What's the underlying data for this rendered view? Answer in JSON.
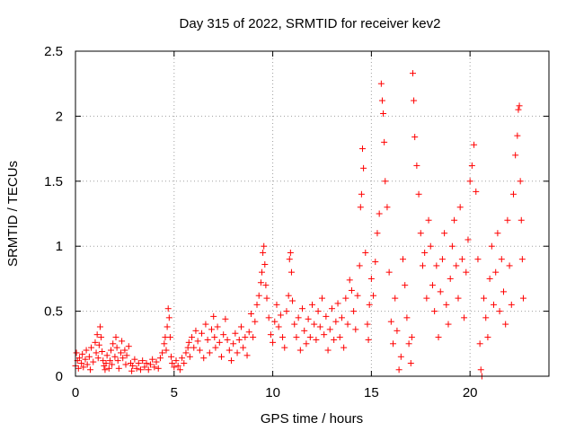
{
  "chart_data": {
    "type": "scatter",
    "title": "Day 315 of 2022, SRMTID for receiver kev2",
    "xlabel": "GPS time / hours",
    "ylabel": "SRMTID / TECUs",
    "xlim": [
      0,
      24
    ],
    "ylim": [
      0,
      2.5
    ],
    "x_ticks": [
      0,
      5,
      10,
      15,
      20
    ],
    "x_tick_labels": [
      "0",
      "5",
      "10",
      "15",
      "20"
    ],
    "y_ticks": [
      0,
      0.5,
      1,
      1.5,
      2,
      2.5
    ],
    "y_tick_labels": [
      "0",
      "0.5",
      "1",
      "1.5",
      "2",
      "2.5"
    ],
    "grid": true,
    "marker": "plus",
    "series_color": "#ff0000",
    "series": [
      {
        "name": "SRMTID",
        "points": [
          [
            0.0,
            0.08
          ],
          [
            0.05,
            0.18
          ],
          [
            0.1,
            0.12
          ],
          [
            0.15,
            0.06
          ],
          [
            0.2,
            0.14
          ],
          [
            0.3,
            0.1
          ],
          [
            0.35,
            0.17
          ],
          [
            0.4,
            0.07
          ],
          [
            0.5,
            0.13
          ],
          [
            0.55,
            0.2
          ],
          [
            0.6,
            0.09
          ],
          [
            0.7,
            0.15
          ],
          [
            0.75,
            0.05
          ],
          [
            0.8,
            0.22
          ],
          [
            0.9,
            0.11
          ],
          [
            1.0,
            0.26
          ],
          [
            1.05,
            0.18
          ],
          [
            1.1,
            0.32
          ],
          [
            1.15,
            0.14
          ],
          [
            1.2,
            0.24
          ],
          [
            1.25,
            0.38
          ],
          [
            1.3,
            0.3
          ],
          [
            1.35,
            0.19
          ],
          [
            1.4,
            0.12
          ],
          [
            1.45,
            0.08
          ],
          [
            1.5,
            0.05
          ],
          [
            1.55,
            0.1
          ],
          [
            1.6,
            0.16
          ],
          [
            1.7,
            0.06
          ],
          [
            1.75,
            0.12
          ],
          [
            1.8,
            0.2
          ],
          [
            1.85,
            0.09
          ],
          [
            1.9,
            0.25
          ],
          [
            2.0,
            0.15
          ],
          [
            2.05,
            0.3
          ],
          [
            2.1,
            0.22
          ],
          [
            2.15,
            0.12
          ],
          [
            2.2,
            0.06
          ],
          [
            2.3,
            0.18
          ],
          [
            2.35,
            0.27
          ],
          [
            2.4,
            0.14
          ],
          [
            2.5,
            0.2
          ],
          [
            2.55,
            0.09
          ],
          [
            2.6,
            0.16
          ],
          [
            2.7,
            0.23
          ],
          [
            2.8,
            0.1
          ],
          [
            2.85,
            0.04
          ],
          [
            2.9,
            0.08
          ],
          [
            3.0,
            0.13
          ],
          [
            3.1,
            0.06
          ],
          [
            3.2,
            0.1
          ],
          [
            3.3,
            0.05
          ],
          [
            3.4,
            0.12
          ],
          [
            3.5,
            0.07
          ],
          [
            3.6,
            0.1
          ],
          [
            3.7,
            0.05
          ],
          [
            3.8,
            0.09
          ],
          [
            3.9,
            0.13
          ],
          [
            4.0,
            0.07
          ],
          [
            4.1,
            0.11
          ],
          [
            4.2,
            0.06
          ],
          [
            4.3,
            0.14
          ],
          [
            4.4,
            0.18
          ],
          [
            4.5,
            0.25
          ],
          [
            4.55,
            0.3
          ],
          [
            4.6,
            0.2
          ],
          [
            4.65,
            0.38
          ],
          [
            4.7,
            0.52
          ],
          [
            4.75,
            0.45
          ],
          [
            4.8,
            0.3
          ],
          [
            4.85,
            0.15
          ],
          [
            4.9,
            0.1
          ],
          [
            5.0,
            0.07
          ],
          [
            5.1,
            0.12
          ],
          [
            5.2,
            0.08
          ],
          [
            5.3,
            0.05
          ],
          [
            5.4,
            0.14
          ],
          [
            5.5,
            0.1
          ],
          [
            5.6,
            0.18
          ],
          [
            5.7,
            0.22
          ],
          [
            5.75,
            0.26
          ],
          [
            5.8,
            0.15
          ],
          [
            5.9,
            0.3
          ],
          [
            6.0,
            0.22
          ],
          [
            6.1,
            0.35
          ],
          [
            6.2,
            0.27
          ],
          [
            6.3,
            0.2
          ],
          [
            6.4,
            0.33
          ],
          [
            6.5,
            0.14
          ],
          [
            6.6,
            0.4
          ],
          [
            6.7,
            0.28
          ],
          [
            6.8,
            0.18
          ],
          [
            6.9,
            0.36
          ],
          [
            7.0,
            0.46
          ],
          [
            7.05,
            0.3
          ],
          [
            7.1,
            0.22
          ],
          [
            7.2,
            0.38
          ],
          [
            7.3,
            0.26
          ],
          [
            7.4,
            0.15
          ],
          [
            7.5,
            0.32
          ],
          [
            7.6,
            0.44
          ],
          [
            7.7,
            0.28
          ],
          [
            7.8,
            0.2
          ],
          [
            7.9,
            0.12
          ],
          [
            8.0,
            0.25
          ],
          [
            8.1,
            0.33
          ],
          [
            8.2,
            0.18
          ],
          [
            8.3,
            0.28
          ],
          [
            8.4,
            0.38
          ],
          [
            8.5,
            0.22
          ],
          [
            8.6,
            0.3
          ],
          [
            8.7,
            0.16
          ],
          [
            8.8,
            0.34
          ],
          [
            8.9,
            0.48
          ],
          [
            9.0,
            0.3
          ],
          [
            9.1,
            0.42
          ],
          [
            9.2,
            0.55
          ],
          [
            9.3,
            0.62
          ],
          [
            9.4,
            0.72
          ],
          [
            9.45,
            0.8
          ],
          [
            9.5,
            0.95
          ],
          [
            9.55,
            1.0
          ],
          [
            9.6,
            0.86
          ],
          [
            9.65,
            0.7
          ],
          [
            9.7,
            0.6
          ],
          [
            9.8,
            0.45
          ],
          [
            9.9,
            0.32
          ],
          [
            10.0,
            0.26
          ],
          [
            10.1,
            0.42
          ],
          [
            10.2,
            0.55
          ],
          [
            10.3,
            0.38
          ],
          [
            10.4,
            0.47
          ],
          [
            10.5,
            0.3
          ],
          [
            10.6,
            0.22
          ],
          [
            10.7,
            0.5
          ],
          [
            10.8,
            0.62
          ],
          [
            10.85,
            0.9
          ],
          [
            10.9,
            0.95
          ],
          [
            10.95,
            0.8
          ],
          [
            11.0,
            0.58
          ],
          [
            11.1,
            0.4
          ],
          [
            11.2,
            0.3
          ],
          [
            11.3,
            0.45
          ],
          [
            11.4,
            0.2
          ],
          [
            11.5,
            0.52
          ],
          [
            11.6,
            0.35
          ],
          [
            11.7,
            0.25
          ],
          [
            11.8,
            0.44
          ],
          [
            11.9,
            0.3
          ],
          [
            12.0,
            0.55
          ],
          [
            12.1,
            0.4
          ],
          [
            12.2,
            0.28
          ],
          [
            12.3,
            0.5
          ],
          [
            12.4,
            0.38
          ],
          [
            12.5,
            0.6
          ],
          [
            12.6,
            0.32
          ],
          [
            12.7,
            0.46
          ],
          [
            12.8,
            0.2
          ],
          [
            12.9,
            0.36
          ],
          [
            13.0,
            0.52
          ],
          [
            13.1,
            0.28
          ],
          [
            13.2,
            0.42
          ],
          [
            13.3,
            0.56
          ],
          [
            13.4,
            0.3
          ],
          [
            13.5,
            0.45
          ],
          [
            13.6,
            0.22
          ],
          [
            13.7,
            0.6
          ],
          [
            13.8,
            0.4
          ],
          [
            13.9,
            0.74
          ],
          [
            14.0,
            0.66
          ],
          [
            14.1,
            0.5
          ],
          [
            14.2,
            0.36
          ],
          [
            14.3,
            0.62
          ],
          [
            14.4,
            0.85
          ],
          [
            14.45,
            1.3
          ],
          [
            14.5,
            1.4
          ],
          [
            14.55,
            1.75
          ],
          [
            14.6,
            1.6
          ],
          [
            14.7,
            0.95
          ],
          [
            14.8,
            0.4
          ],
          [
            14.85,
            0.28
          ],
          [
            14.9,
            0.55
          ],
          [
            15.0,
            0.75
          ],
          [
            15.1,
            0.62
          ],
          [
            15.2,
            0.88
          ],
          [
            15.3,
            1.1
          ],
          [
            15.4,
            1.25
          ],
          [
            15.5,
            2.25
          ],
          [
            15.55,
            2.12
          ],
          [
            15.6,
            2.02
          ],
          [
            15.65,
            1.8
          ],
          [
            15.7,
            1.5
          ],
          [
            15.8,
            1.3
          ],
          [
            15.9,
            0.8
          ],
          [
            16.0,
            0.42
          ],
          [
            16.1,
            0.25
          ],
          [
            16.2,
            0.6
          ],
          [
            16.3,
            0.35
          ],
          [
            16.4,
            0.05
          ],
          [
            16.5,
            0.15
          ],
          [
            16.6,
            0.9
          ],
          [
            16.7,
            0.7
          ],
          [
            16.8,
            0.45
          ],
          [
            16.9,
            0.25
          ],
          [
            17.0,
            0.1
          ],
          [
            17.05,
            0.3
          ],
          [
            17.1,
            2.33
          ],
          [
            17.15,
            2.12
          ],
          [
            17.2,
            1.84
          ],
          [
            17.3,
            1.62
          ],
          [
            17.4,
            1.4
          ],
          [
            17.5,
            1.1
          ],
          [
            17.6,
            0.85
          ],
          [
            17.7,
            0.95
          ],
          [
            17.8,
            0.6
          ],
          [
            17.9,
            1.2
          ],
          [
            18.0,
            1.0
          ],
          [
            18.1,
            0.7
          ],
          [
            18.2,
            0.5
          ],
          [
            18.3,
            0.85
          ],
          [
            18.4,
            0.3
          ],
          [
            18.5,
            0.65
          ],
          [
            18.6,
            0.9
          ],
          [
            18.7,
            1.1
          ],
          [
            18.8,
            0.55
          ],
          [
            18.9,
            0.4
          ],
          [
            19.0,
            0.75
          ],
          [
            19.1,
            1.0
          ],
          [
            19.2,
            1.2
          ],
          [
            19.3,
            0.85
          ],
          [
            19.4,
            0.6
          ],
          [
            19.5,
            1.3
          ],
          [
            19.6,
            0.9
          ],
          [
            19.7,
            0.45
          ],
          [
            19.8,
            0.8
          ],
          [
            19.9,
            1.05
          ],
          [
            20.0,
            1.5
          ],
          [
            20.1,
            1.62
          ],
          [
            20.2,
            1.78
          ],
          [
            20.3,
            1.42
          ],
          [
            20.4,
            0.9
          ],
          [
            20.5,
            0.25
          ],
          [
            20.55,
            0.05
          ],
          [
            20.6,
            0.0
          ],
          [
            20.7,
            0.6
          ],
          [
            20.8,
            0.45
          ],
          [
            20.9,
            0.3
          ],
          [
            21.0,
            0.75
          ],
          [
            21.1,
            1.0
          ],
          [
            21.2,
            0.55
          ],
          [
            21.3,
            0.8
          ],
          [
            21.4,
            1.1
          ],
          [
            21.5,
            0.5
          ],
          [
            21.6,
            0.9
          ],
          [
            21.7,
            0.65
          ],
          [
            21.8,
            0.4
          ],
          [
            21.9,
            1.2
          ],
          [
            22.0,
            0.85
          ],
          [
            22.1,
            0.55
          ],
          [
            22.2,
            1.4
          ],
          [
            22.3,
            1.7
          ],
          [
            22.4,
            1.85
          ],
          [
            22.45,
            2.05
          ],
          [
            22.5,
            2.08
          ],
          [
            22.55,
            1.5
          ],
          [
            22.6,
            1.2
          ],
          [
            22.65,
            0.9
          ],
          [
            22.7,
            0.6
          ]
        ]
      }
    ]
  }
}
